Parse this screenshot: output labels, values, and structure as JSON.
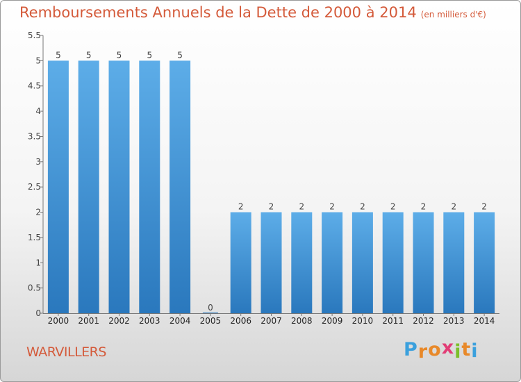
{
  "chart_data": {
    "type": "bar",
    "title": "Remboursements Annuels de la Dette de 2000 à 2014",
    "subtitle": "(en milliers d'€)",
    "categories": [
      "2000",
      "2001",
      "2002",
      "2003",
      "2004",
      "2005",
      "2006",
      "2007",
      "2008",
      "2009",
      "2010",
      "2011",
      "2012",
      "2013",
      "2014"
    ],
    "values": [
      5,
      5,
      5,
      5,
      5,
      0,
      2,
      2,
      2,
      2,
      2,
      2,
      2,
      2,
      2
    ],
    "yticks": [
      "0",
      "0.5",
      "1",
      "1.5",
      "2",
      "2.5",
      "3",
      "3.5",
      "4",
      "4.5",
      "5",
      "5.5"
    ],
    "ylim": [
      0,
      5.5
    ],
    "xlabel": "",
    "ylabel": "",
    "bar_color_top": "#5dade8",
    "bar_color_bottom": "#2a78bd"
  },
  "footer": {
    "commune": "WARVILLERS",
    "logo_letters": [
      "P",
      "r",
      "o",
      "x",
      "i",
      "t",
      "i"
    ],
    "logo_colors": [
      "#3aa0dd",
      "#e8892a",
      "#e8892a",
      "#e23d76",
      "#7cbf2a",
      "#e8892a",
      "#3aa0dd"
    ]
  }
}
